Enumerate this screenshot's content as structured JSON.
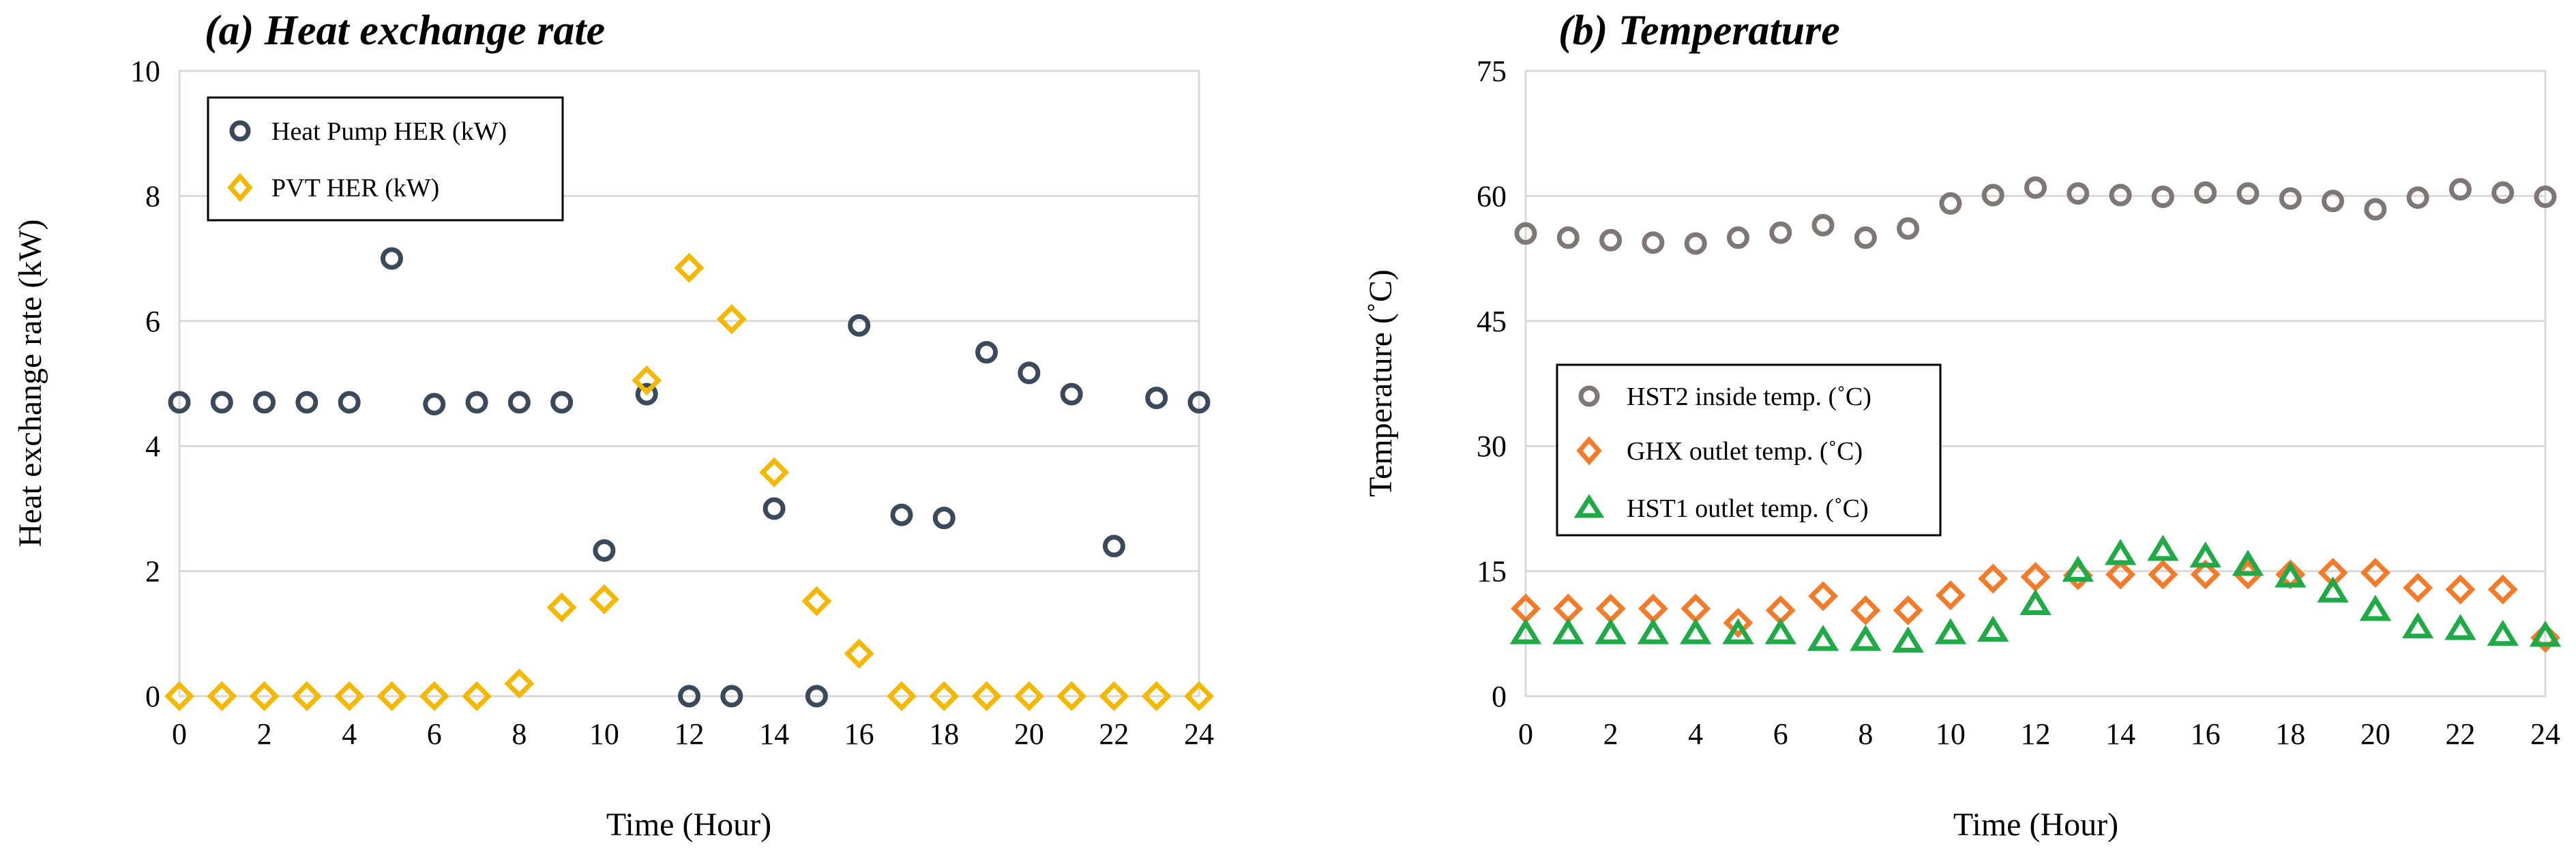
{
  "chart_data": [
    {
      "type": "scatter",
      "title": "(a) Heat exchange rate",
      "xlabel": "Time (Hour)",
      "ylabel": "Heat exchange rate (kW)",
      "xlim": [
        0,
        24
      ],
      "ylim": [
        0,
        10
      ],
      "xticks": [
        0,
        2,
        4,
        6,
        8,
        10,
        12,
        14,
        16,
        18,
        20,
        22,
        24
      ],
      "yticks": [
        0,
        2,
        4,
        6,
        8,
        10
      ],
      "grid": "horizontal",
      "legend_position": "top-left",
      "x": [
        0,
        1,
        2,
        3,
        4,
        5,
        6,
        7,
        8,
        9,
        10,
        11,
        12,
        13,
        14,
        15,
        16,
        17,
        18,
        19,
        20,
        21,
        22,
        23,
        24
      ],
      "series": [
        {
          "name": "Heat Pump HER (kW)",
          "marker": "circle",
          "color": "#3b4a5a",
          "values": [
            4.7,
            4.7,
            4.7,
            4.7,
            4.7,
            7.0,
            4.67,
            4.7,
            4.7,
            4.7,
            2.33,
            4.83,
            0,
            0,
            3.0,
            0,
            5.93,
            2.9,
            2.85,
            5.5,
            5.17,
            4.83,
            2.4,
            4.77,
            4.7
          ]
        },
        {
          "name": "PVT HER (kW)",
          "marker": "diamond",
          "color": "#f5b800",
          "values": [
            0,
            0,
            0,
            0,
            0,
            0,
            0,
            0,
            0.2,
            1.42,
            1.55,
            5.05,
            6.85,
            6.03,
            3.58,
            1.52,
            0.68,
            0,
            0,
            0,
            0,
            0,
            0,
            0,
            0
          ]
        }
      ]
    },
    {
      "type": "scatter",
      "title": "(b) Temperature",
      "xlabel": "Time (Hour)",
      "ylabel": "Temperature (˚C)",
      "xlim": [
        0,
        24
      ],
      "ylim": [
        0,
        75
      ],
      "xticks": [
        0,
        2,
        4,
        6,
        8,
        10,
        12,
        14,
        16,
        18,
        20,
        22,
        24
      ],
      "yticks": [
        0,
        15,
        30,
        45,
        60,
        75
      ],
      "grid": "horizontal",
      "legend_position": "center-left",
      "x": [
        0,
        1,
        2,
        3,
        4,
        5,
        6,
        7,
        8,
        9,
        10,
        11,
        12,
        13,
        14,
        15,
        16,
        17,
        18,
        19,
        20,
        21,
        22,
        23,
        24
      ],
      "series": [
        {
          "name": "HST2 inside temp. (˚C)",
          "marker": "circle",
          "color": "#7f7775",
          "values": [
            55.5,
            55.0,
            54.7,
            54.4,
            54.3,
            55.0,
            55.6,
            56.5,
            55.0,
            56.1,
            59.1,
            60.1,
            61.0,
            60.3,
            60.1,
            59.9,
            60.4,
            60.3,
            59.7,
            59.4,
            58.4,
            59.8,
            60.8,
            60.4,
            59.9
          ]
        },
        {
          "name": "GHX outlet temp. (˚C)",
          "marker": "diamond",
          "color": "#f47b2a",
          "values": [
            10.5,
            10.5,
            10.5,
            10.5,
            10.5,
            8.8,
            10.3,
            12.0,
            10.3,
            10.3,
            12.1,
            14.1,
            14.3,
            14.5,
            14.6,
            14.6,
            14.6,
            14.6,
            14.6,
            14.8,
            14.8,
            13.0,
            12.8,
            12.8,
            7.0
          ]
        },
        {
          "name": "HST1 outlet temp. (˚C)",
          "marker": "triangle",
          "color": "#1faa47",
          "values": [
            7.5,
            7.5,
            7.5,
            7.5,
            7.5,
            7.5,
            7.5,
            6.7,
            6.7,
            6.5,
            7.5,
            7.8,
            11.0,
            15.0,
            17.0,
            17.5,
            16.7,
            15.7,
            14.3,
            12.5,
            10.3,
            8.2,
            8.0,
            7.3,
            7.2
          ]
        }
      ]
    }
  ]
}
